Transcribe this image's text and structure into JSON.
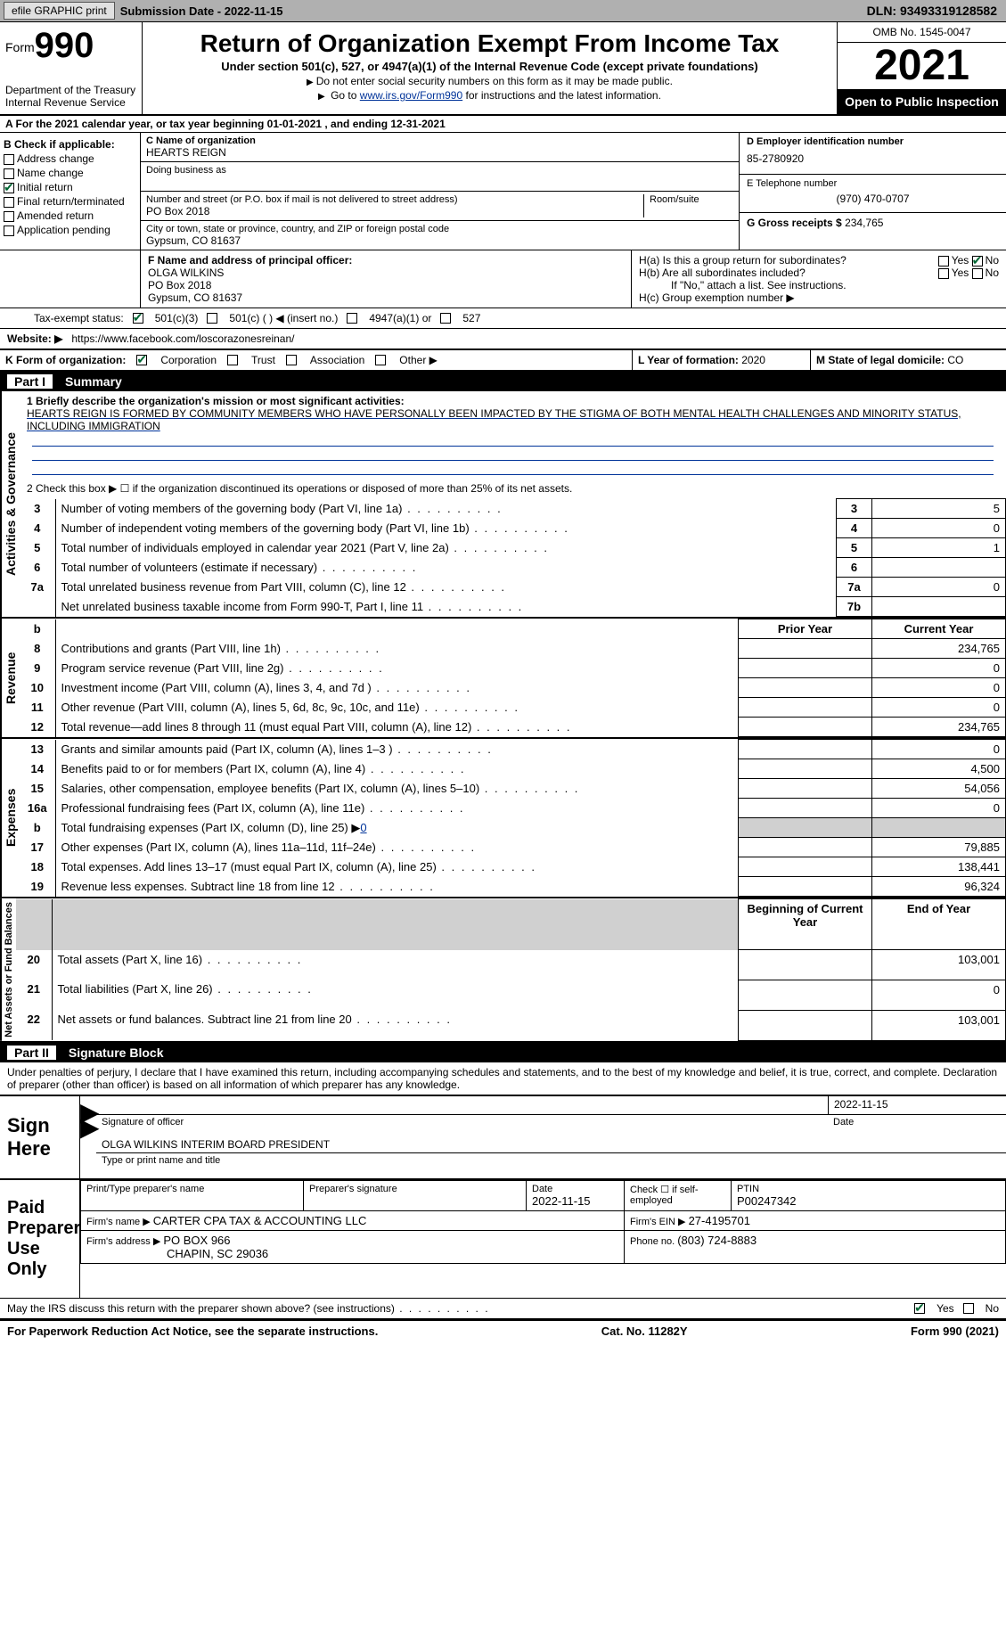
{
  "topbar": {
    "efile_btn": "efile GRAPHIC print",
    "subdate_label": "Submission Date - ",
    "subdate": "2022-11-15",
    "dln_label": "DLN: ",
    "dln": "93493319128582"
  },
  "header": {
    "form_word": "Form",
    "form_num": "990",
    "dept": "Department of the Treasury\nInternal Revenue Service",
    "title": "Return of Organization Exempt From Income Tax",
    "subtitle": "Under section 501(c), 527, or 4947(a)(1) of the Internal Revenue Code (except private foundations)",
    "note1": "Do not enter social security numbers on this form as it may be made public.",
    "note2_pre": "Go to ",
    "note2_link": "www.irs.gov/Form990",
    "note2_post": " for instructions and the latest information.",
    "omb": "OMB No. 1545-0047",
    "year": "2021",
    "open": "Open to Public Inspection"
  },
  "sectA": "A For the 2021 calendar year, or tax year beginning 01-01-2021    , and ending 12-31-2021",
  "checkB": {
    "label": "B Check if applicable:",
    "opts": [
      "Address change",
      "Name change",
      "Initial return",
      "Final return/terminated",
      "Amended return",
      "Application pending"
    ],
    "checked_idx": 2
  },
  "entity": {
    "c_label": "C Name of organization",
    "org": "HEARTS REIGN",
    "dba_label": "Doing business as",
    "street_label": "Number and street (or P.O. box if mail is not delivered to street address)",
    "street": "PO Box 2018",
    "room_label": "Room/suite",
    "city_label": "City or town, state or province, country, and ZIP or foreign postal code",
    "city": "Gypsum, CO  81637",
    "d_label": "D Employer identification number",
    "ein": "85-2780920",
    "e_label": "E Telephone number",
    "phone": "(970) 470-0707",
    "g_label": "G Gross receipts $ ",
    "gross": "234,765"
  },
  "fh": {
    "f_label": "F  Name and address of principal officer:",
    "f_name": "OLGA WILKINS",
    "f_addr1": "PO Box 2018",
    "f_addr2": "Gypsum, CO  81637",
    "ha": "H(a)  Is this a group return for subordinates?",
    "hb": "H(b)  Are all subordinates included?",
    "hb_note": "If \"No,\" attach a list. See instructions.",
    "hc": "H(c)  Group exemption number ▶",
    "yes": "Yes",
    "no": "No"
  },
  "ij": {
    "i_label": "Tax-exempt status:",
    "i_501c3": "501(c)(3)",
    "i_501c": "501(c) (   ) ◀ (insert no.)",
    "i_4947": "4947(a)(1) or",
    "i_527": "527",
    "j_label": "Website: ▶",
    "j_url": "https://www.facebook.com/loscorazonesreinan/"
  },
  "kl": {
    "k_label": "K Form of organization:",
    "k_corp": "Corporation",
    "k_trust": "Trust",
    "k_assoc": "Association",
    "k_other": "Other ▶",
    "l_label": "L Year of formation: ",
    "l_val": "2020",
    "m_label": "M State of legal domicile: ",
    "m_val": "CO"
  },
  "part1": {
    "hdr_part": "Part I",
    "hdr_title": "Summary",
    "q1_label": "1  Briefly describe the organization's mission or most significant activities:",
    "q1_text": "HEARTS REIGN IS FORMED BY COMMUNITY MEMBERS WHO HAVE PERSONALLY BEEN IMPACTED BY THE STIGMA OF BOTH MENTAL HEALTH CHALLENGES AND MINORITY STATUS, INCLUDING IMMIGRATION",
    "q2": "2   Check this box ▶ ☐  if the organization discontinued its operations or disposed of more than 25% of its net assets.",
    "lines": [
      {
        "n": "3",
        "t": "Number of voting members of the governing body (Part VI, line 1a)",
        "box": "3",
        "v": "5"
      },
      {
        "n": "4",
        "t": "Number of independent voting members of the governing body (Part VI, line 1b)",
        "box": "4",
        "v": "0"
      },
      {
        "n": "5",
        "t": "Total number of individuals employed in calendar year 2021 (Part V, line 2a)",
        "box": "5",
        "v": "1"
      },
      {
        "n": "6",
        "t": "Total number of volunteers (estimate if necessary)",
        "box": "6",
        "v": ""
      },
      {
        "n": "7a",
        "t": "Total unrelated business revenue from Part VIII, column (C), line 12",
        "box": "7a",
        "v": "0"
      },
      {
        "n": "",
        "t": "Net unrelated business taxable income from Form 990-T, Part I, line 11",
        "box": "7b",
        "v": ""
      }
    ],
    "vtab_act": "Activities & Governance",
    "vtab_rev": "Revenue",
    "vtab_exp": "Expenses",
    "vtab_net": "Net Assets or Fund Balances",
    "col_prior": "Prior Year",
    "col_curr": "Current Year",
    "col_boy": "Beginning of Current Year",
    "col_eoy": "End of Year",
    "revenue": [
      {
        "n": "8",
        "t": "Contributions and grants (Part VIII, line 1h)",
        "p": "",
        "c": "234,765"
      },
      {
        "n": "9",
        "t": "Program service revenue (Part VIII, line 2g)",
        "p": "",
        "c": "0"
      },
      {
        "n": "10",
        "t": "Investment income (Part VIII, column (A), lines 3, 4, and 7d )",
        "p": "",
        "c": "0"
      },
      {
        "n": "11",
        "t": "Other revenue (Part VIII, column (A), lines 5, 6d, 8c, 9c, 10c, and 11e)",
        "p": "",
        "c": "0"
      },
      {
        "n": "12",
        "t": "Total revenue—add lines 8 through 11 (must equal Part VIII, column (A), line 12)",
        "p": "",
        "c": "234,765"
      }
    ],
    "expenses": [
      {
        "n": "13",
        "t": "Grants and similar amounts paid (Part IX, column (A), lines 1–3 )",
        "p": "",
        "c": "0"
      },
      {
        "n": "14",
        "t": "Benefits paid to or for members (Part IX, column (A), line 4)",
        "p": "",
        "c": "4,500"
      },
      {
        "n": "15",
        "t": "Salaries, other compensation, employee benefits (Part IX, column (A), lines 5–10)",
        "p": "",
        "c": "54,056"
      },
      {
        "n": "16a",
        "t": "Professional fundraising fees (Part IX, column (A), line 11e)",
        "p": "",
        "c": "0"
      },
      {
        "n": "b",
        "t": "Total fundraising expenses (Part IX, column (D), line 25) ▶",
        "p": "shade",
        "c": "shade",
        "fund": "0"
      },
      {
        "n": "17",
        "t": "Other expenses (Part IX, column (A), lines 11a–11d, 11f–24e)",
        "p": "",
        "c": "79,885"
      },
      {
        "n": "18",
        "t": "Total expenses. Add lines 13–17 (must equal Part IX, column (A), line 25)",
        "p": "",
        "c": "138,441"
      },
      {
        "n": "19",
        "t": "Revenue less expenses. Subtract line 18 from line 12",
        "p": "",
        "c": "96,324"
      }
    ],
    "netassets": [
      {
        "n": "20",
        "t": "Total assets (Part X, line 16)",
        "p": "",
        "c": "103,001"
      },
      {
        "n": "21",
        "t": "Total liabilities (Part X, line 26)",
        "p": "",
        "c": "0"
      },
      {
        "n": "22",
        "t": "Net assets or fund balances. Subtract line 21 from line 20",
        "p": "",
        "c": "103,001"
      }
    ]
  },
  "part2": {
    "hdr_part": "Part II",
    "hdr_title": "Signature Block",
    "decl": "Under penalties of perjury, I declare that I have examined this return, including accompanying schedules and statements, and to the best of my knowledge and belief, it is true, correct, and complete. Declaration of preparer (other than officer) is based on all information of which preparer has any knowledge.",
    "sign_here": "Sign Here",
    "sig_officer": "Signature of officer",
    "sig_date": "2022-11-15",
    "date_lbl": "Date",
    "officer_name": "OLGA WILKINS  INTERIM BOARD PRESIDENT",
    "type_name": "Type or print name and title",
    "paid": "Paid Preparer Use Only",
    "prep_name_lbl": "Print/Type preparer's name",
    "prep_sig_lbl": "Preparer's signature",
    "prep_date_lbl": "Date",
    "prep_date": "2022-11-15",
    "prep_check": "Check ☐ if self-employed",
    "ptin_lbl": "PTIN",
    "ptin": "P00247342",
    "firm_name_lbl": "Firm's name    ▶ ",
    "firm_name": "CARTER CPA TAX & ACCOUNTING LLC",
    "firm_ein_lbl": "Firm's EIN ▶ ",
    "firm_ein": "27-4195701",
    "firm_addr_lbl": "Firm's address ▶ ",
    "firm_addr": "PO BOX 966",
    "firm_addr2": "CHAPIN, SC  29036",
    "firm_phone_lbl": "Phone no. ",
    "firm_phone": "(803) 724-8883",
    "discuss": "May the IRS discuss this return with the preparer shown above? (see instructions)"
  },
  "footer": {
    "left": "For Paperwork Reduction Act Notice, see the separate instructions.",
    "mid": "Cat. No. 11282Y",
    "right": "Form 990 (2021)"
  }
}
